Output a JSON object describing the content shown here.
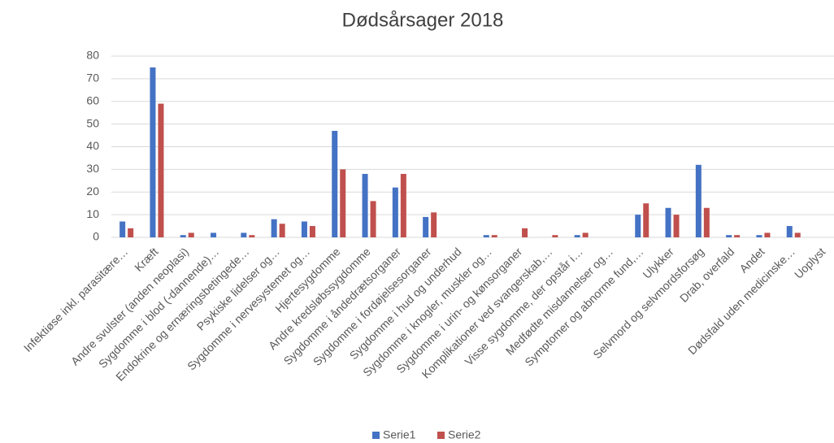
{
  "chart_data": {
    "type": "bar",
    "title": "Dødsårsager 2018",
    "categories": [
      "Infektiøse inkl. parasitære…",
      "Kræft",
      "Andre svulster (anden neoplasi)",
      "Sygdomme i blod (-dannende)…",
      "Endokrine og ernæringsbetingede…",
      "Psykiske lidelser og…",
      "Sygdomme i nervesystemet og…",
      "Hjertesygdomme",
      "Andre kredsløbssygdomme",
      "Sygdomme i åndedrætsorganer",
      "Sygdomme i fordøjelsesorganer",
      "Sygdomme i hud og underhud",
      "Sygdomme i knogler, muskler og…",
      "Sygdomme i urin- og kønsorganer",
      "Komplikationer ved svangerskab,…",
      "Visse sygdomme, der opstår i…",
      "Medfødte misdannelser og…",
      "Symptomer og abnorme fund,…",
      "Ulykker",
      "Selvmord og selvmordsforsøg",
      "Drab, overfald",
      "Andet",
      "Dødsfald uden medicinske…",
      "Uoplyst"
    ],
    "series": [
      {
        "name": "Serie1",
        "color": "#4472c4",
        "values": [
          7,
          75,
          1,
          2,
          2,
          8,
          7,
          47,
          28,
          22,
          9,
          0,
          1,
          0,
          0,
          1,
          0,
          10,
          13,
          32,
          1,
          1,
          5,
          0
        ]
      },
      {
        "name": "Serie2",
        "color": "#c0504d",
        "values": [
          4,
          59,
          2,
          0,
          1,
          6,
          5,
          30,
          16,
          28,
          11,
          0,
          1,
          4,
          1,
          2,
          0,
          15,
          10,
          13,
          1,
          2,
          2,
          0
        ]
      }
    ],
    "ylim": [
      0,
      80
    ],
    "yticks": [
      0,
      10,
      20,
      30,
      40,
      50,
      60,
      70,
      80
    ],
    "grid": true,
    "legend": "bottom"
  }
}
